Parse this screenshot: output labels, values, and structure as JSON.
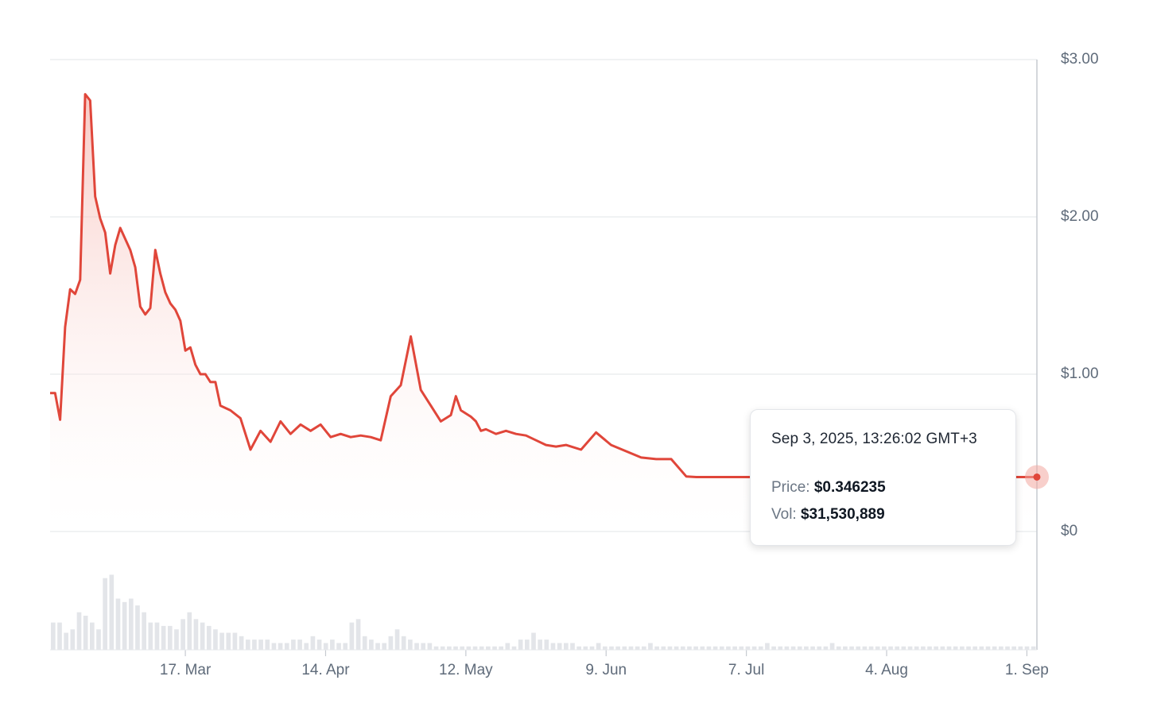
{
  "chart_data": {
    "type": "area",
    "y_axis": {
      "position": "right",
      "range": [
        0,
        3
      ],
      "ticks": [
        {
          "value": 0,
          "label": "$0"
        },
        {
          "value": 1,
          "label": "$1.00"
        },
        {
          "value": 2,
          "label": "$2.00"
        },
        {
          "value": 3,
          "label": "$3.00"
        }
      ]
    },
    "x_axis": {
      "range": [
        "2025-02-18",
        "2025-09-03"
      ],
      "ticks": [
        {
          "date": "2025-03-17",
          "label": "17. Mar"
        },
        {
          "date": "2025-04-14",
          "label": "14. Apr"
        },
        {
          "date": "2025-05-12",
          "label": "12. May"
        },
        {
          "date": "2025-06-09",
          "label": "9. Jun"
        },
        {
          "date": "2025-07-07",
          "label": "7. Jul"
        },
        {
          "date": "2025-08-04",
          "label": "4. Aug"
        },
        {
          "date": "2025-09-01",
          "label": "1. Sep"
        }
      ]
    },
    "grid": true,
    "colors": {
      "line": "#e0463a",
      "fill": "#f9d3cf",
      "volume": "#e3e5e9",
      "grid": "#e7e9ec",
      "axis": "#c6cad0"
    },
    "series": [
      {
        "x": [
          "2025-02-18",
          "2025-02-19",
          "2025-02-20",
          "2025-02-21",
          "2025-02-22",
          "2025-02-23",
          "2025-02-24",
          "2025-02-25",
          "2025-02-26",
          "2025-02-27",
          "2025-02-28",
          "2025-03-01",
          "2025-03-02",
          "2025-03-03",
          "2025-03-04",
          "2025-03-05",
          "2025-03-06",
          "2025-03-07",
          "2025-03-08",
          "2025-03-09",
          "2025-03-10",
          "2025-03-11",
          "2025-03-12",
          "2025-03-13",
          "2025-03-14",
          "2025-03-15",
          "2025-03-16",
          "2025-03-17",
          "2025-03-18",
          "2025-03-19",
          "2025-03-20",
          "2025-03-21",
          "2025-03-22",
          "2025-03-23",
          "2025-03-24",
          "2025-03-26",
          "2025-03-28",
          "2025-03-30",
          "2025-04-01",
          "2025-04-03",
          "2025-04-05",
          "2025-04-07",
          "2025-04-09",
          "2025-04-11",
          "2025-04-13",
          "2025-04-15",
          "2025-04-17",
          "2025-04-19",
          "2025-04-21",
          "2025-04-23",
          "2025-04-25",
          "2025-04-27",
          "2025-04-29",
          "2025-05-01",
          "2025-05-03",
          "2025-05-05",
          "2025-05-07",
          "2025-05-09",
          "2025-05-10",
          "2025-05-11",
          "2025-05-12",
          "2025-05-13",
          "2025-05-14",
          "2025-05-15",
          "2025-05-16",
          "2025-05-18",
          "2025-05-20",
          "2025-05-22",
          "2025-05-24",
          "2025-05-26",
          "2025-05-28",
          "2025-05-30",
          "2025-06-01",
          "2025-06-04",
          "2025-06-07",
          "2025-06-10",
          "2025-06-13",
          "2025-06-16",
          "2025-06-19",
          "2025-06-22",
          "2025-06-25",
          "2025-06-27",
          "2025-06-28",
          "2025-06-29",
          "2025-07-01",
          "2025-07-04",
          "2025-07-07",
          "2025-07-09",
          "2025-09-02",
          "2025-09-03"
        ],
        "y": [
          0.88,
          0.88,
          0.71,
          1.3,
          1.54,
          1.51,
          1.6,
          2.78,
          2.74,
          2.13,
          1.99,
          1.9,
          1.64,
          1.82,
          1.93,
          1.86,
          1.79,
          1.68,
          1.43,
          1.38,
          1.42,
          1.79,
          1.64,
          1.52,
          1.45,
          1.41,
          1.34,
          1.15,
          1.17,
          1.06,
          1.0,
          1.0,
          0.95,
          0.95,
          0.8,
          0.77,
          0.72,
          0.52,
          0.64,
          0.57,
          0.7,
          0.62,
          0.68,
          0.64,
          0.68,
          0.6,
          0.62,
          0.6,
          0.61,
          0.6,
          0.58,
          0.86,
          0.93,
          1.24,
          0.9,
          0.8,
          0.7,
          0.74,
          0.86,
          0.77,
          0.75,
          0.73,
          0.7,
          0.64,
          0.65,
          0.62,
          0.64,
          0.62,
          0.61,
          0.58,
          0.55,
          0.54,
          0.55,
          0.52,
          0.63,
          0.55,
          0.51,
          0.47,
          0.46,
          0.46,
          0.35,
          0.346,
          0.346,
          0.346,
          0.346,
          0.346,
          0.346,
          0.346,
          0.346,
          0.346235
        ]
      }
    ],
    "volume_bars": [
      8,
      8,
      5,
      6,
      11,
      10,
      8,
      6,
      21,
      22,
      15,
      14,
      15,
      13,
      11,
      8,
      8,
      7,
      7,
      6,
      9,
      11,
      9,
      8,
      7,
      6,
      5,
      5,
      5,
      4,
      3,
      3,
      3,
      3,
      2,
      2,
      2,
      3,
      3,
      2,
      4,
      3,
      2,
      3,
      2,
      2,
      8,
      9,
      4,
      3,
      2,
      2,
      4,
      6,
      4,
      3,
      2,
      2,
      2,
      1,
      1,
      1,
      1,
      1,
      1,
      1,
      1,
      1,
      1,
      1,
      2,
      1,
      3,
      3,
      5,
      3,
      3,
      2,
      2,
      2,
      2,
      1,
      1,
      1,
      2,
      1,
      1,
      1,
      1,
      1,
      1,
      1,
      2,
      1,
      1,
      1,
      1,
      1,
      1,
      1,
      1,
      1,
      1,
      1,
      1,
      1,
      1,
      1,
      1,
      1,
      2,
      1,
      1,
      1,
      1,
      1,
      1,
      1,
      1,
      1,
      2,
      1,
      1,
      1,
      1,
      1,
      1,
      1,
      1,
      1,
      1,
      1,
      1,
      1,
      1,
      1,
      1,
      1,
      1,
      1,
      1,
      1,
      1,
      1,
      1,
      1,
      1,
      1,
      1,
      1,
      1,
      1
    ],
    "tooltip": {
      "date": "Sep 3, 2025, 13:26:02 GMT+3",
      "price_label": "Price:",
      "price_value": "$0.346235",
      "vol_label": "Vol:",
      "vol_value": "$31,530,889"
    }
  }
}
